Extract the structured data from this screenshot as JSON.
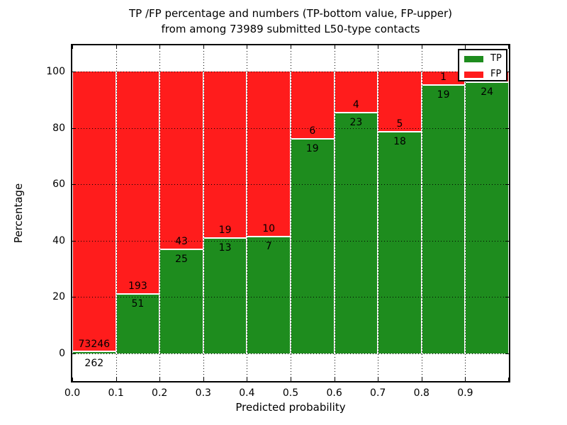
{
  "chart_data": {
    "type": "bar",
    "stacked": true,
    "unit": "percentage",
    "title_line1": "TP /FP percentage and numbers (TP-bottom value, FP-upper)",
    "title_line2": "from among 73989 submitted L50-type contacts",
    "xlabel": "Predicted probability",
    "ylabel": "Percentage",
    "xlim": [
      0.0,
      1.0
    ],
    "x_tick_labels": [
      "0.0",
      "0.1",
      "0.2",
      "0.3",
      "0.4",
      "0.5",
      "0.6",
      "0.7",
      "0.8",
      "0.9"
    ],
    "y_tick_values": [
      0,
      20,
      40,
      60,
      80,
      100
    ],
    "y_tick_labels": [
      "0",
      "20",
      "40",
      "60",
      "80",
      "100"
    ],
    "grid_style": "dotted",
    "colors": {
      "tp_green": "#1e8c1e",
      "fp_red": "#ff1c1c",
      "background": "#ffffff"
    },
    "legend": {
      "position": "upper-right",
      "entries": [
        {
          "label": "TP",
          "color": "#1e8c1e"
        },
        {
          "label": "FP",
          "color": "#ff1c1c"
        }
      ]
    },
    "bins": [
      {
        "range": "0.0-0.1",
        "tp_count": 262,
        "fp_count": 73246,
        "tp_label": "262",
        "fp_label": "73246",
        "tp_pct": 0.36
      },
      {
        "range": "0.1-0.2",
        "tp_count": 51,
        "fp_count": 193,
        "tp_label": "51",
        "fp_label": "193",
        "tp_pct": 20.9
      },
      {
        "range": "0.2-0.3",
        "tp_count": 25,
        "fp_count": 43,
        "tp_label": "25",
        "fp_label": "43",
        "tp_pct": 36.8
      },
      {
        "range": "0.3-0.4",
        "tp_count": 13,
        "fp_count": 19,
        "tp_label": "13",
        "fp_label": "19",
        "tp_pct": 40.6
      },
      {
        "range": "0.4-0.5",
        "tp_count": 7,
        "fp_count": 10,
        "tp_label": "7",
        "fp_label": "10",
        "tp_pct": 41.2
      },
      {
        "range": "0.5-0.6",
        "tp_count": 19,
        "fp_count": 6,
        "tp_label": "19",
        "fp_label": "6",
        "tp_pct": 76.0
      },
      {
        "range": "0.6-0.7",
        "tp_count": 23,
        "fp_count": 4,
        "tp_label": "23",
        "fp_label": "4",
        "tp_pct": 85.2
      },
      {
        "range": "0.7-0.8",
        "tp_count": 18,
        "fp_count": 5,
        "tp_label": "18",
        "fp_label": "5",
        "tp_pct": 78.3
      },
      {
        "range": "0.8-0.9",
        "tp_count": 19,
        "fp_count": 1,
        "tp_label": "19",
        "fp_label": "1",
        "tp_pct": 95.0
      },
      {
        "range": "0.9-1.0",
        "tp_count": 24,
        "fp_count": null,
        "tp_label": "24",
        "fp_label": "",
        "tp_pct": 96.0
      }
    ]
  }
}
